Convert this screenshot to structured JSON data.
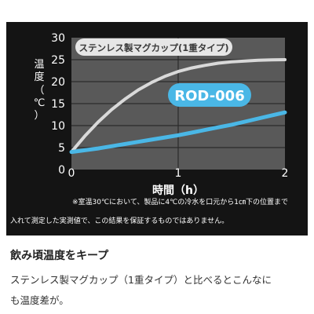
{
  "chart_data": {
    "type": "line",
    "xlabel": "時間（h）",
    "ylabel": [
      "温",
      "度",
      "（",
      "℃",
      "）"
    ],
    "xlim": [
      0,
      2
    ],
    "ylim": [
      0,
      30
    ],
    "x_ticks": [
      "0",
      "1",
      "2"
    ],
    "y_ticks": [
      "0",
      "5",
      "10",
      "15",
      "20",
      "25",
      "30"
    ],
    "grid": true,
    "series": [
      {
        "name": "ステンレス製マグカップ(1重タイプ)",
        "color": "#d9d9d9",
        "x": [
          0,
          0.125,
          0.25,
          0.375,
          0.5,
          0.625,
          0.75,
          0.875,
          1.0,
          1.125,
          1.25,
          1.375,
          1.5,
          1.625,
          1.75,
          1.875,
          2.0
        ],
        "y": [
          4,
          7.6,
          10.8,
          13.6,
          16.0,
          18.1,
          19.8,
          21.2,
          22.3,
          23.1,
          23.7,
          24.2,
          24.5,
          24.7,
          24.85,
          24.95,
          25.0
        ]
      },
      {
        "name": "ROD-006",
        "color": "#4ab7e6",
        "x": [
          0,
          0.125,
          0.25,
          0.375,
          0.5,
          0.625,
          0.75,
          0.875,
          1.0,
          1.125,
          1.25,
          1.375,
          1.5,
          1.625,
          1.75,
          1.875,
          2.0
        ],
        "y": [
          4,
          4.4,
          4.8,
          5.3,
          5.8,
          6.3,
          6.8,
          7.3,
          7.8,
          8.4,
          9.0,
          9.6,
          10.2,
          10.9,
          11.6,
          12.3,
          13.0
        ]
      }
    ]
  },
  "note": {
    "line1": "※室温30℃において、製品に4℃の冷水を口元から1㎝下の位置まで",
    "line2": "入れて測定した実測値で、この結果を保証するものではありません。"
  },
  "heading": "飲み頃温度をキープ",
  "caption": {
    "line1": "ステンレス製マグカップ（1重タイプ）と比べるとこんなに",
    "line2": "も温度差が。"
  },
  "colors": {
    "panel_bg": "#141414",
    "plot_bg": "#595959",
    "grid": "#2b2b2b",
    "blue": "#4ab7e6",
    "gray": "#d9d9d9"
  }
}
